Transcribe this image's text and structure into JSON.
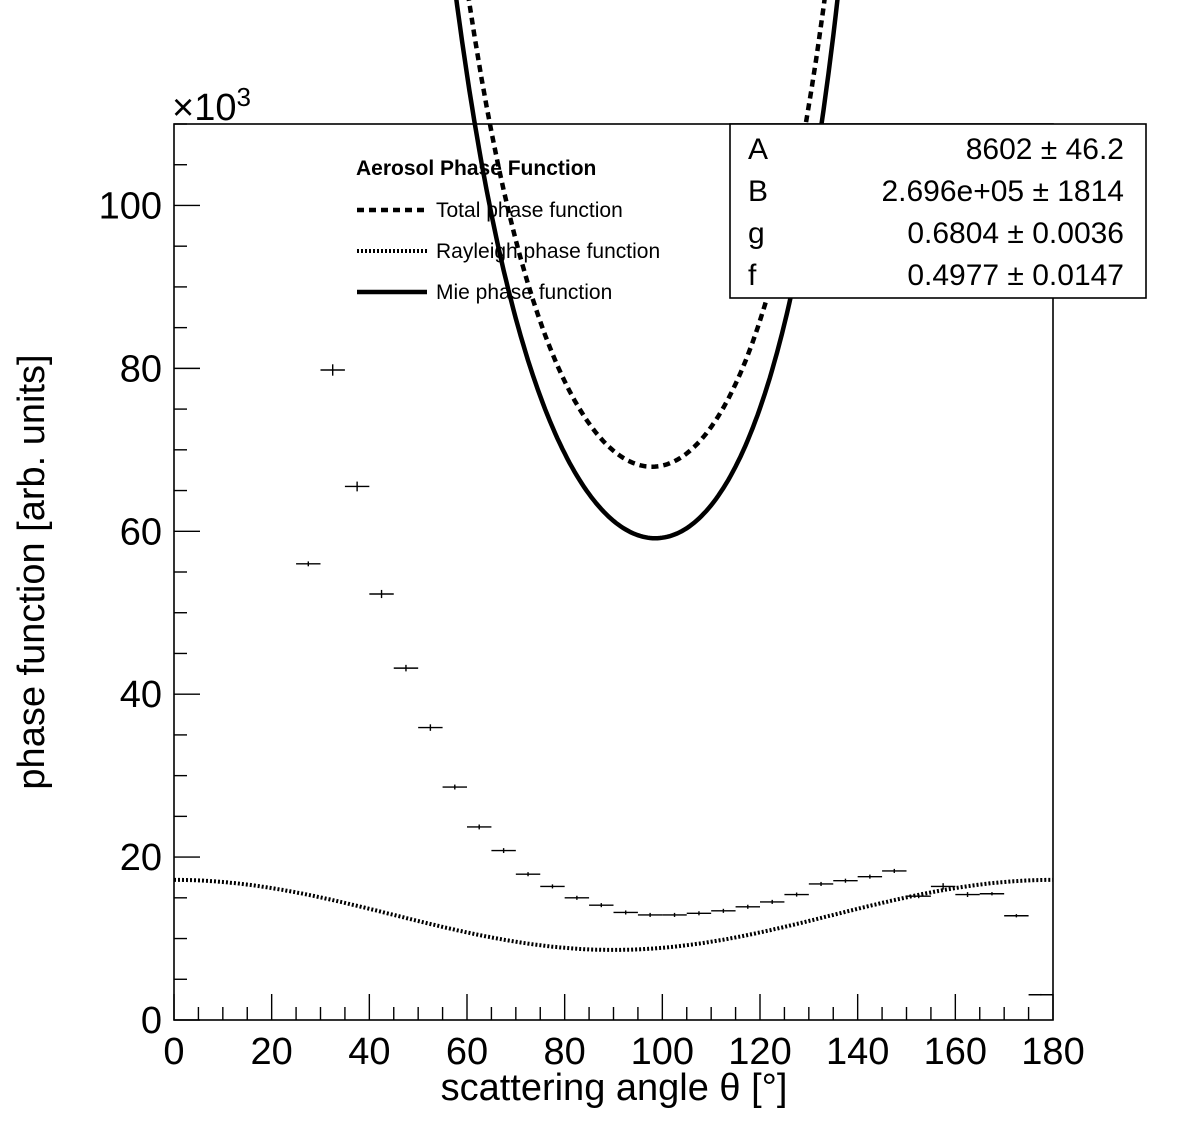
{
  "chart_data": {
    "type": "scatter",
    "xlabel": "scattering angle θ [°]",
    "ylabel": "phase function [arb. units]",
    "y_exponent_label": "×10",
    "y_exponent_power": "3",
    "xlim": [
      0,
      180
    ],
    "ylim": [
      0,
      110000
    ],
    "x_ticks": [
      0,
      20,
      40,
      60,
      80,
      100,
      120,
      140,
      160,
      180
    ],
    "y_ticks": [
      0,
      20000,
      40000,
      60000,
      80000,
      100000
    ],
    "x_tick_labels": [
      "0",
      "20",
      "40",
      "60",
      "80",
      "100",
      "120",
      "140",
      "160",
      "180"
    ],
    "y_tick_labels": [
      "0",
      "20",
      "40",
      "60",
      "80",
      "100"
    ],
    "legend": {
      "title": "Aerosol Phase Function",
      "entries": [
        {
          "label": "Total phase function",
          "style": "dashed"
        },
        {
          "label": "Rayleigh phase function",
          "style": "dotted"
        },
        {
          "label": "Mie phase function",
          "style": "solid"
        }
      ]
    },
    "stats_box": [
      {
        "name": "A",
        "value": "8602",
        "error": "46.2"
      },
      {
        "name": "B",
        "value": "2.696e+05",
        "error": "1814"
      },
      {
        "name": "g",
        "value": "0.6804",
        "error": "0.0036"
      },
      {
        "name": "f",
        "value": "0.4977",
        "error": "0.0147"
      }
    ],
    "fit_parameters": {
      "A": 8602,
      "B": 269600,
      "g": 0.6804,
      "f": 0.4977
    },
    "fit_range": [
      33,
      147
    ],
    "data_points": [
      {
        "x": 27.5,
        "xerr": 2.5,
        "y": 56000,
        "yerr": 300
      },
      {
        "x": 32.5,
        "xerr": 2.5,
        "y": 79800,
        "yerr": 700
      },
      {
        "x": 37.5,
        "xerr": 2.5,
        "y": 65500,
        "yerr": 600
      },
      {
        "x": 42.5,
        "xerr": 2.5,
        "y": 52300,
        "yerr": 500
      },
      {
        "x": 47.5,
        "xerr": 2.5,
        "y": 43200,
        "yerr": 400
      },
      {
        "x": 52.5,
        "xerr": 2.5,
        "y": 35900,
        "yerr": 400
      },
      {
        "x": 57.5,
        "xerr": 2.5,
        "y": 28600,
        "yerr": 300
      },
      {
        "x": 62.5,
        "xerr": 2.5,
        "y": 23700,
        "yerr": 300
      },
      {
        "x": 67.5,
        "xerr": 2.5,
        "y": 20800,
        "yerr": 300
      },
      {
        "x": 72.5,
        "xerr": 2.5,
        "y": 17900,
        "yerr": 250
      },
      {
        "x": 77.5,
        "xerr": 2.5,
        "y": 16400,
        "yerr": 250
      },
      {
        "x": 82.5,
        "xerr": 2.5,
        "y": 15000,
        "yerr": 250
      },
      {
        "x": 87.5,
        "xerr": 2.5,
        "y": 14100,
        "yerr": 250
      },
      {
        "x": 92.5,
        "xerr": 2.5,
        "y": 13200,
        "yerr": 250
      },
      {
        "x": 97.5,
        "xerr": 2.5,
        "y": 12900,
        "yerr": 250
      },
      {
        "x": 102.5,
        "xerr": 2.5,
        "y": 12900,
        "yerr": 250
      },
      {
        "x": 107.5,
        "xerr": 2.5,
        "y": 13100,
        "yerr": 250
      },
      {
        "x": 112.5,
        "xerr": 2.5,
        "y": 13400,
        "yerr": 250
      },
      {
        "x": 117.5,
        "xerr": 2.5,
        "y": 13900,
        "yerr": 250
      },
      {
        "x": 122.5,
        "xerr": 2.5,
        "y": 14500,
        "yerr": 250
      },
      {
        "x": 127.5,
        "xerr": 2.5,
        "y": 15400,
        "yerr": 250
      },
      {
        "x": 132.5,
        "xerr": 2.5,
        "y": 16700,
        "yerr": 250
      },
      {
        "x": 137.5,
        "xerr": 2.5,
        "y": 17100,
        "yerr": 250
      },
      {
        "x": 142.5,
        "xerr": 2.5,
        "y": 17600,
        "yerr": 250
      },
      {
        "x": 147.5,
        "xerr": 2.5,
        "y": 18300,
        "yerr": 250
      },
      {
        "x": 152.5,
        "xerr": 2.5,
        "y": 15200,
        "yerr": 250
      },
      {
        "x": 157.5,
        "xerr": 2.5,
        "y": 16400,
        "yerr": 400
      },
      {
        "x": 162.5,
        "xerr": 2.5,
        "y": 15400,
        "yerr": 300
      },
      {
        "x": 167.5,
        "xerr": 2.5,
        "y": 15500,
        "yerr": 200
      },
      {
        "x": 172.5,
        "xerr": 2.5,
        "y": 12800,
        "yerr": 200
      },
      {
        "x": 177.5,
        "xerr": 2.5,
        "y": 3100,
        "yerr": 100
      }
    ]
  }
}
